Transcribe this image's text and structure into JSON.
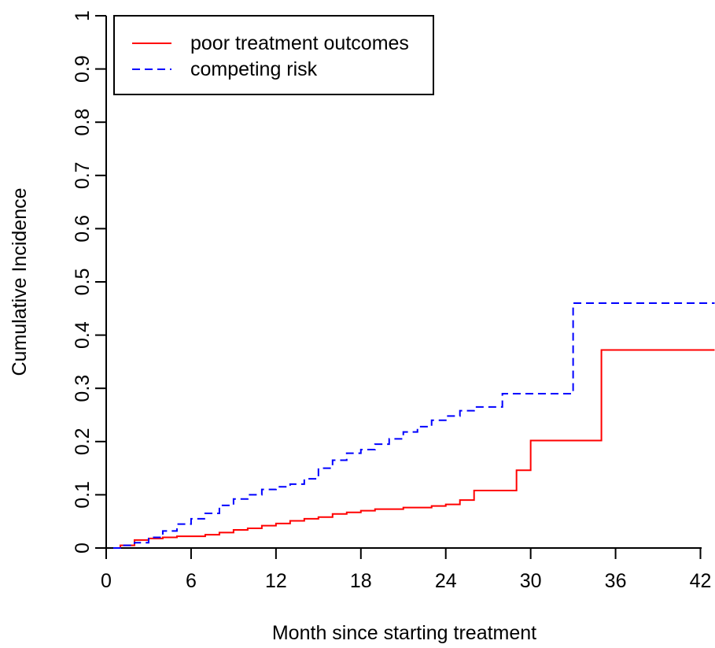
{
  "chart_data": {
    "type": "line",
    "xlabel": "Month since starting treatment",
    "ylabel": "Cumulative Incidence",
    "xlim": [
      0,
      43
    ],
    "ylim": [
      0,
      1
    ],
    "x_ticks": [
      "0",
      "6",
      "12",
      "18",
      "24",
      "30",
      "36",
      "42"
    ],
    "y_ticks": [
      "0",
      "0.1",
      "0.2",
      "0.3",
      "0.4",
      "0.5",
      "0.6",
      "0.7",
      "0.8",
      "0.9",
      "1"
    ],
    "grid": false,
    "legend_position": "top-left",
    "step": true,
    "series": [
      {
        "name": "poor treatment outcomes",
        "color": "#ff0000",
        "dash": "solid",
        "points": [
          [
            0.5,
            0
          ],
          [
            1,
            0.005
          ],
          [
            2,
            0.015
          ],
          [
            3,
            0.018
          ],
          [
            4,
            0.02
          ],
          [
            5,
            0.022
          ],
          [
            7,
            0.025
          ],
          [
            8,
            0.029
          ],
          [
            9,
            0.034
          ],
          [
            10,
            0.037
          ],
          [
            11,
            0.042
          ],
          [
            12,
            0.046
          ],
          [
            13,
            0.051
          ],
          [
            14,
            0.055
          ],
          [
            15,
            0.058
          ],
          [
            16,
            0.064
          ],
          [
            17,
            0.067
          ],
          [
            18,
            0.07
          ],
          [
            19,
            0.073
          ],
          [
            21,
            0.076
          ],
          [
            23,
            0.079
          ],
          [
            24,
            0.082
          ],
          [
            25,
            0.09
          ],
          [
            26,
            0.108
          ],
          [
            29,
            0.146
          ],
          [
            30,
            0.202
          ],
          [
            35,
            0.372
          ],
          [
            43,
            0.372
          ]
        ]
      },
      {
        "name": "competing risk",
        "color": "#0000ff",
        "dash": "dashed",
        "points": [
          [
            0.5,
            0
          ],
          [
            1,
            0.005
          ],
          [
            2,
            0.01
          ],
          [
            3,
            0.02
          ],
          [
            4,
            0.032
          ],
          [
            5,
            0.045
          ],
          [
            6,
            0.055
          ],
          [
            7,
            0.065
          ],
          [
            8,
            0.08
          ],
          [
            9,
            0.092
          ],
          [
            10,
            0.1
          ],
          [
            11,
            0.11
          ],
          [
            12,
            0.115
          ],
          [
            13,
            0.12
          ],
          [
            14,
            0.13
          ],
          [
            15,
            0.15
          ],
          [
            16,
            0.165
          ],
          [
            17,
            0.178
          ],
          [
            18,
            0.185
          ],
          [
            19,
            0.195
          ],
          [
            20,
            0.205
          ],
          [
            21,
            0.218
          ],
          [
            22,
            0.228
          ],
          [
            23,
            0.24
          ],
          [
            24,
            0.248
          ],
          [
            25,
            0.258
          ],
          [
            26,
            0.265
          ],
          [
            28,
            0.29
          ],
          [
            33,
            0.46
          ],
          [
            43,
            0.46
          ]
        ]
      }
    ]
  }
}
